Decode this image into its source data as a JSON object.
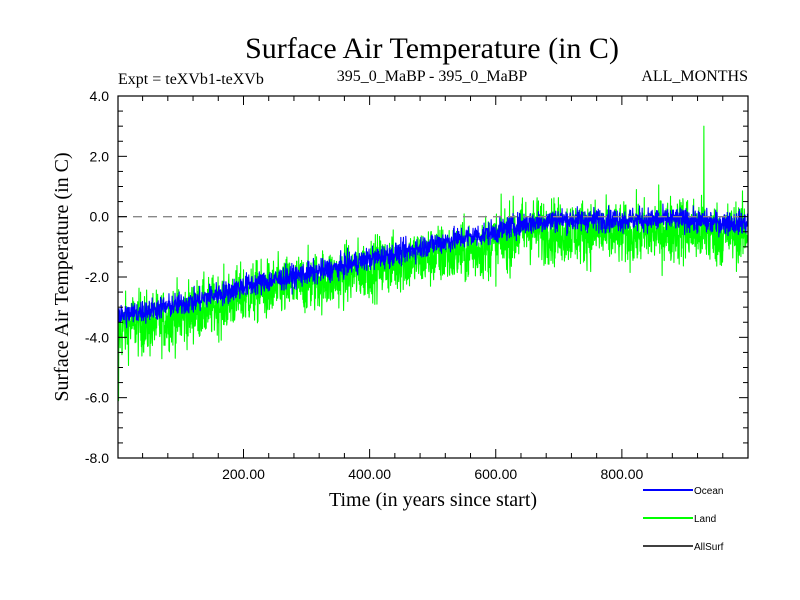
{
  "chart_data": {
    "type": "line",
    "title": "Surface Air Temperature (in C)",
    "subtitle_left": "Expt = teXVb1-teXVb",
    "subtitle_center": "395_0_MaBP - 395_0_MaBP",
    "subtitle_right": "ALL_MONTHS",
    "xlabel": "Time (in years since start)",
    "ylabel": "Surface Air Temperature (in C)",
    "xlim": [
      1,
      1000
    ],
    "ylim": [
      -8.0,
      4.0
    ],
    "x_ticks": [
      200,
      400,
      600,
      800
    ],
    "x_tick_labels": [
      "200.00",
      "400.00",
      "600.00",
      "800.00"
    ],
    "y_ticks": [
      -8,
      -6,
      -4,
      -2,
      0,
      2,
      4
    ],
    "y_tick_labels": [
      "-8.0",
      "-6.0",
      "-4.0",
      "-2.0",
      "0.0",
      "2.0",
      "4.0"
    ],
    "reference_line": {
      "y": 0.0,
      "style": "dashed",
      "color": "#888888"
    },
    "legend_position": "bottom-right",
    "series": [
      {
        "name": "Land",
        "color": "#00ff00",
        "x": [
          1,
          25,
          50,
          75,
          100,
          125,
          150,
          175,
          200,
          250,
          300,
          350,
          400,
          450,
          500,
          550,
          600,
          650,
          700,
          750,
          800,
          850,
          900,
          950,
          1000
        ],
        "mean": [
          -3.8,
          -3.5,
          -3.6,
          -3.4,
          -3.3,
          -3.1,
          -3.0,
          -2.8,
          -2.6,
          -2.4,
          -2.2,
          -2.0,
          -1.7,
          -1.5,
          -1.3,
          -1.2,
          -0.9,
          -0.4,
          -0.5,
          -0.5,
          -0.6,
          -0.5,
          -0.4,
          -0.6,
          -0.5
        ],
        "amplitude": [
          1.4,
          1.3,
          1.4,
          1.3,
          1.4,
          1.3,
          1.3,
          1.3,
          1.3,
          1.3,
          1.3,
          1.3,
          1.3,
          1.3,
          1.3,
          1.3,
          1.4,
          1.4,
          1.4,
          1.4,
          1.3,
          1.4,
          1.5,
          1.4,
          1.3
        ],
        "extremes": [
          {
            "x": 2,
            "y": -6.1
          },
          {
            "x": 930,
            "y": 3.0
          }
        ]
      },
      {
        "name": "Ocean",
        "color": "#0000ff",
        "x": [
          1,
          25,
          50,
          75,
          100,
          125,
          150,
          175,
          200,
          250,
          300,
          350,
          400,
          450,
          500,
          550,
          600,
          650,
          700,
          750,
          800,
          850,
          900,
          950,
          1000
        ],
        "mean": [
          -3.3,
          -3.2,
          -3.1,
          -3.0,
          -2.9,
          -2.8,
          -2.6,
          -2.5,
          -2.3,
          -2.1,
          -1.9,
          -1.7,
          -1.4,
          -1.2,
          -0.9,
          -0.7,
          -0.5,
          -0.2,
          -0.1,
          -0.1,
          -0.1,
          -0.1,
          -0.1,
          -0.2,
          -0.2
        ],
        "amplitude": [
          0.6,
          0.5,
          0.5,
          0.5,
          0.5,
          0.5,
          0.5,
          0.5,
          0.5,
          0.5,
          0.5,
          0.5,
          0.5,
          0.5,
          0.5,
          0.5,
          0.5,
          0.5,
          0.5,
          0.5,
          0.5,
          0.5,
          0.5,
          0.5,
          0.5
        ]
      },
      {
        "name": "AllSurf",
        "color": "#000000",
        "x": [],
        "mean": []
      }
    ]
  },
  "legend": {
    "items": [
      {
        "label": "Ocean",
        "color": "#0000ff"
      },
      {
        "label": "Land",
        "color": "#00ff00"
      },
      {
        "label": "AllSurf",
        "color": "#000000"
      }
    ]
  }
}
